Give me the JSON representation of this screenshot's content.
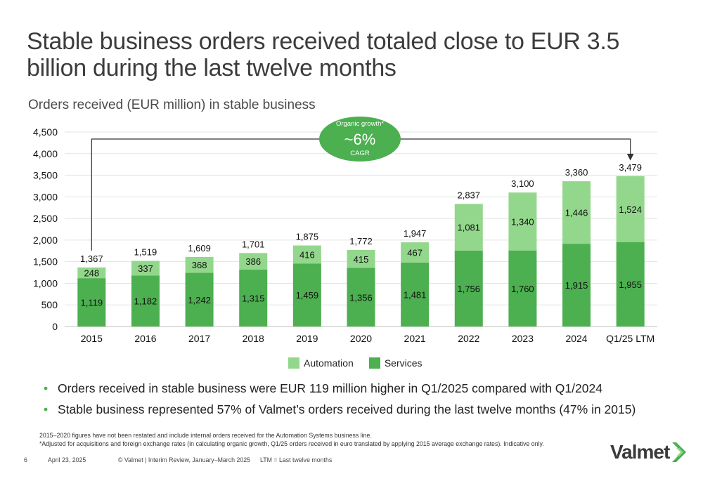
{
  "title": "Stable business orders received totaled close to EUR 3.5 billion during the last twelve months",
  "chart_data": {
    "type": "bar",
    "stacked": true,
    "title": "Orders received (EUR million) in stable business",
    "categories": [
      "2015",
      "2016",
      "2017",
      "2018",
      "2019",
      "2020",
      "2021",
      "2022",
      "2023",
      "2024",
      "Q1/25 LTM"
    ],
    "series": [
      {
        "name": "Services",
        "color": "#4caf50",
        "values": [
          1119,
          1182,
          1242,
          1315,
          1459,
          1356,
          1481,
          1756,
          1760,
          1915,
          1955
        ]
      },
      {
        "name": "Automation",
        "color": "#93d78c",
        "values": [
          248,
          337,
          368,
          386,
          416,
          415,
          467,
          1081,
          1340,
          1446,
          1524
        ]
      }
    ],
    "totals": [
      1367,
      1519,
      1609,
      1701,
      1875,
      1772,
      1947,
      2837,
      3100,
      3360,
      3479
    ],
    "ylim": [
      0,
      4500
    ],
    "yticks": [
      0,
      500,
      1000,
      1500,
      2000,
      2500,
      3000,
      3500,
      4000,
      4500
    ],
    "ytick_labels": [
      "0",
      "500",
      "1,000",
      "1,500",
      "2,000",
      "2,500",
      "3,000",
      "3,500",
      "4,000",
      "4,500"
    ],
    "grid": true,
    "legend_position": "bottom-center",
    "callout": {
      "line1": "Organic growth*",
      "line2": "~6%",
      "line3": "CAGR",
      "color": "#4caf50"
    }
  },
  "legend": {
    "automation": "Automation",
    "services": "Services"
  },
  "bullets": [
    "Orders received in stable business were EUR 119 million higher in Q1/2025 compared with Q1/2024",
    "Stable business represented 57% of Valmet’s orders received during the last twelve months (47% in 2015)"
  ],
  "bullet_symbol": "•",
  "footnotes": [
    "2015–2020 figures have not been restated and include internal orders received for the Automation Systems business line.",
    "*Adjusted for acquisitions and foreign exchange rates (in calculating organic growth, Q1/25 orders received in euro translated by applying 2015 average exchange rates). Indicative only."
  ],
  "footer": {
    "page": "6",
    "date": "April 23, 2025",
    "copyright": "© Valmet   | Interim Review, January–March 2025",
    "ltm_note": "LTM = Last twelve months"
  },
  "logo": {
    "text": "Valmet",
    "icon": "valmet-chevron-logo-icon",
    "color": "#4caf50"
  }
}
